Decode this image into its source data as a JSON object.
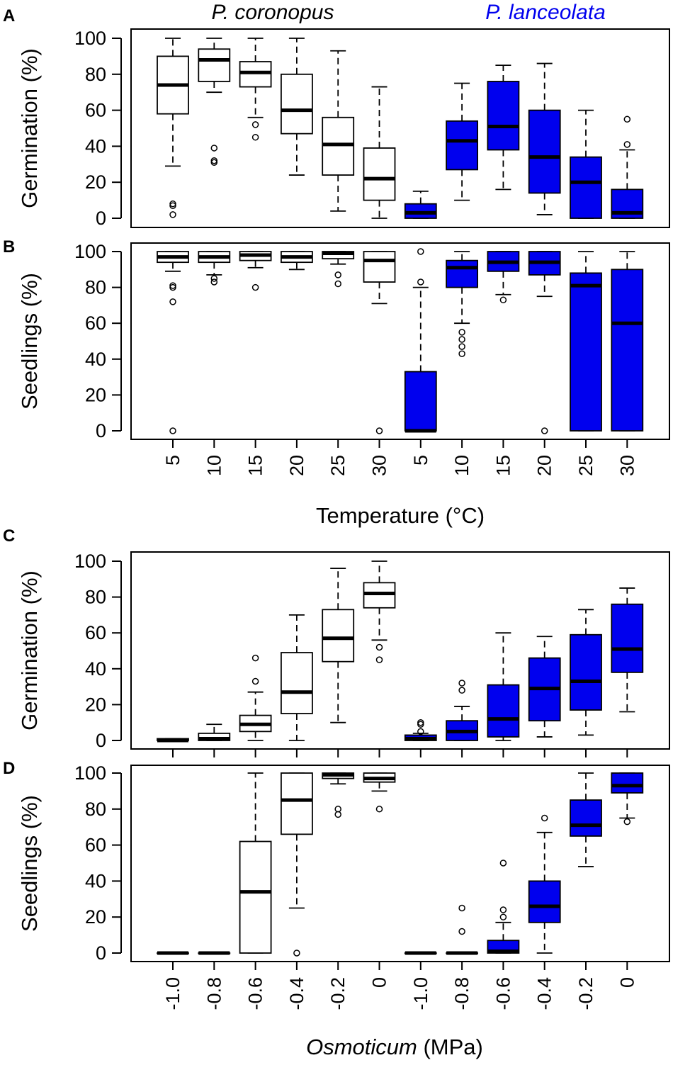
{
  "colors": {
    "coronopus_fill": "#ffffff",
    "lanceolata_fill": "#0000ee",
    "lanceolata_text": "#0000ee",
    "stroke": "#000000"
  },
  "legend": {
    "species_1": "P. coronopus",
    "species_2": "P. lanceolata"
  },
  "chart_data": [
    {
      "panel": "A",
      "type": "boxplot",
      "ylabel": "Germination (%)",
      "ylim": [
        0,
        100
      ],
      "yticks": [
        0,
        20,
        40,
        60,
        80,
        100
      ],
      "categories": [
        "5",
        "10",
        "15",
        "20",
        "25",
        "30",
        "5",
        "10",
        "15",
        "20",
        "25",
        "30"
      ],
      "groups": [
        "P. coronopus",
        "P. coronopus",
        "P. coronopus",
        "P. coronopus",
        "P. coronopus",
        "P. coronopus",
        "P. lanceolata",
        "P. lanceolata",
        "P. lanceolata",
        "P. lanceolata",
        "P. lanceolata",
        "P. lanceolata"
      ],
      "boxes": [
        {
          "min": 29,
          "q1": 58,
          "median": 74,
          "q3": 90,
          "max": 100,
          "outliers": [
            2,
            7,
            8
          ]
        },
        {
          "min": 70,
          "q1": 76,
          "median": 88,
          "q3": 94,
          "max": 100,
          "outliers": [
            31,
            32,
            39
          ]
        },
        {
          "min": 56,
          "q1": 73,
          "median": 81,
          "q3": 87,
          "max": 100,
          "outliers": [
            45,
            52
          ]
        },
        {
          "min": 24,
          "q1": 47,
          "median": 60,
          "q3": 80,
          "max": 100,
          "outliers": []
        },
        {
          "min": 4,
          "q1": 24,
          "median": 41,
          "q3": 56,
          "max": 93,
          "outliers": []
        },
        {
          "min": 0,
          "q1": 10,
          "median": 22,
          "q3": 39,
          "max": 73,
          "outliers": []
        },
        {
          "min": 0,
          "q1": 0,
          "median": 3,
          "q3": 8,
          "max": 15,
          "outliers": []
        },
        {
          "min": 10,
          "q1": 27,
          "median": 43,
          "q3": 54,
          "max": 75,
          "outliers": []
        },
        {
          "min": 16,
          "q1": 38,
          "median": 51,
          "q3": 76,
          "max": 85,
          "outliers": []
        },
        {
          "min": 2,
          "q1": 14,
          "median": 34,
          "q3": 60,
          "max": 86,
          "outliers": []
        },
        {
          "min": 0,
          "q1": 0,
          "median": 20,
          "q3": 34,
          "max": 60,
          "outliers": []
        },
        {
          "min": 0,
          "q1": 0,
          "median": 3,
          "q3": 16,
          "max": 38,
          "outliers": [
            41,
            55
          ]
        }
      ]
    },
    {
      "panel": "B",
      "type": "boxplot",
      "ylabel": "Seedlings (%)",
      "xlabel": "Temperature (°C)",
      "ylim": [
        0,
        100
      ],
      "yticks": [
        0,
        20,
        40,
        60,
        80,
        100
      ],
      "categories": [
        "5",
        "10",
        "15",
        "20",
        "25",
        "30",
        "5",
        "10",
        "15",
        "20",
        "25",
        "30"
      ],
      "groups": [
        "P. coronopus",
        "P. coronopus",
        "P. coronopus",
        "P. coronopus",
        "P. coronopus",
        "P. coronopus",
        "P. lanceolata",
        "P. lanceolata",
        "P. lanceolata",
        "P. lanceolata",
        "P. lanceolata",
        "P. lanceolata"
      ],
      "boxes": [
        {
          "min": 89,
          "q1": 94,
          "median": 97,
          "q3": 100,
          "max": 100,
          "outliers": [
            0,
            72,
            80,
            81
          ]
        },
        {
          "min": 87,
          "q1": 94,
          "median": 97,
          "q3": 100,
          "max": 100,
          "outliers": [
            83,
            85
          ]
        },
        {
          "min": 91,
          "q1": 95,
          "median": 98,
          "q3": 100,
          "max": 100,
          "outliers": [
            80
          ]
        },
        {
          "min": 90,
          "q1": 94,
          "median": 97,
          "q3": 100,
          "max": 100,
          "outliers": []
        },
        {
          "min": 93,
          "q1": 96,
          "median": 99,
          "q3": 100,
          "max": 100,
          "outliers": [
            82,
            87
          ]
        },
        {
          "min": 71,
          "q1": 83,
          "median": 95,
          "q3": 100,
          "max": 100,
          "outliers": [
            0
          ]
        },
        {
          "min": 0,
          "q1": 0,
          "median": 0,
          "q3": 33,
          "max": 80,
          "outliers": [
            83,
            100
          ]
        },
        {
          "min": 60,
          "q1": 80,
          "median": 91,
          "q3": 95,
          "max": 100,
          "outliers": [
            43,
            47,
            51,
            55
          ]
        },
        {
          "min": 76,
          "q1": 89,
          "median": 94,
          "q3": 100,
          "max": 100,
          "outliers": [
            73
          ]
        },
        {
          "min": 75,
          "q1": 87,
          "median": 94,
          "q3": 100,
          "max": 100,
          "outliers": [
            0
          ]
        },
        {
          "min": 0,
          "q1": 0,
          "median": 81,
          "q3": 88,
          "max": 100,
          "outliers": []
        },
        {
          "min": 0,
          "q1": 0,
          "median": 60,
          "q3": 90,
          "max": 100,
          "outliers": []
        }
      ]
    },
    {
      "panel": "C",
      "type": "boxplot",
      "ylabel": "Germination (%)",
      "ylim": [
        0,
        100
      ],
      "yticks": [
        0,
        20,
        40,
        60,
        80,
        100
      ],
      "categories": [
        "-1.0",
        "-0.8",
        "-0.6",
        "-0.4",
        "-0.2",
        "0",
        "-1.0",
        "-0.8",
        "-0.6",
        "-0.4",
        "-0.2",
        "0"
      ],
      "groups": [
        "P. coronopus",
        "P. coronopus",
        "P. coronopus",
        "P. coronopus",
        "P. coronopus",
        "P. coronopus",
        "P. lanceolata",
        "P. lanceolata",
        "P. lanceolata",
        "P. lanceolata",
        "P. lanceolata",
        "P. lanceolata"
      ],
      "boxes": [
        {
          "min": 0,
          "q1": 0,
          "median": 0,
          "q3": 1,
          "max": 1,
          "outliers": []
        },
        {
          "min": 0,
          "q1": 0,
          "median": 1,
          "q3": 4,
          "max": 9,
          "outliers": []
        },
        {
          "min": 0,
          "q1": 5,
          "median": 9,
          "q3": 14,
          "max": 27,
          "outliers": [
            33,
            46
          ]
        },
        {
          "min": 0,
          "q1": 15,
          "median": 27,
          "q3": 49,
          "max": 70,
          "outliers": []
        },
        {
          "min": 10,
          "q1": 44,
          "median": 57,
          "q3": 73,
          "max": 96,
          "outliers": []
        },
        {
          "min": 56,
          "q1": 74,
          "median": 82,
          "q3": 88,
          "max": 100,
          "outliers": [
            45,
            52
          ]
        },
        {
          "min": 0,
          "q1": 0,
          "median": 1,
          "q3": 3,
          "max": 4,
          "outliers": [
            5,
            9,
            10
          ]
        },
        {
          "min": 0,
          "q1": 0,
          "median": 5,
          "q3": 11,
          "max": 19,
          "outliers": [
            28,
            32
          ]
        },
        {
          "min": 0,
          "q1": 2,
          "median": 12,
          "q3": 31,
          "max": 60,
          "outliers": []
        },
        {
          "min": 2,
          "q1": 11,
          "median": 29,
          "q3": 46,
          "max": 58,
          "outliers": []
        },
        {
          "min": 3,
          "q1": 17,
          "median": 33,
          "q3": 59,
          "max": 73,
          "outliers": []
        },
        {
          "min": 16,
          "q1": 38,
          "median": 51,
          "q3": 76,
          "max": 85,
          "outliers": []
        }
      ]
    },
    {
      "panel": "D",
      "type": "boxplot",
      "ylabel": "Seedlings (%)",
      "xlabel_italic": "Osmoticum",
      "xlabel_rest": " (MPa)",
      "ylim": [
        0,
        100
      ],
      "yticks": [
        0,
        20,
        40,
        60,
        80,
        100
      ],
      "categories": [
        "-1.0",
        "-0.8",
        "-0.6",
        "-0.4",
        "-0.2",
        "0",
        "-1.0",
        "-0.8",
        "-0.6",
        "-0.4",
        "-0.2",
        "0"
      ],
      "groups": [
        "P. coronopus",
        "P. coronopus",
        "P. coronopus",
        "P. coronopus",
        "P. coronopus",
        "P. coronopus",
        "P. lanceolata",
        "P. lanceolata",
        "P. lanceolata",
        "P. lanceolata",
        "P. lanceolata",
        "P. lanceolata"
      ],
      "boxes": [
        {
          "min": 0,
          "q1": 0,
          "median": 0,
          "q3": 0,
          "max": 0,
          "outliers": []
        },
        {
          "min": 0,
          "q1": 0,
          "median": 0,
          "q3": 0,
          "max": 0,
          "outliers": []
        },
        {
          "min": 0,
          "q1": 0,
          "median": 34,
          "q3": 62,
          "max": 100,
          "outliers": []
        },
        {
          "min": 25,
          "q1": 66,
          "median": 85,
          "q3": 100,
          "max": 100,
          "outliers": [
            0
          ]
        },
        {
          "min": 94,
          "q1": 97,
          "median": 99,
          "q3": 100,
          "max": 100,
          "outliers": [
            77,
            80
          ]
        },
        {
          "min": 90,
          "q1": 95,
          "median": 97,
          "q3": 100,
          "max": 100,
          "outliers": [
            80
          ]
        },
        {
          "min": 0,
          "q1": 0,
          "median": 0,
          "q3": 0,
          "max": 0,
          "outliers": []
        },
        {
          "min": 0,
          "q1": 0,
          "median": 0,
          "q3": 0,
          "max": 0,
          "outliers": [
            12,
            25
          ]
        },
        {
          "min": 0,
          "q1": 0,
          "median": 1,
          "q3": 7,
          "max": 17,
          "outliers": [
            20,
            24,
            50
          ]
        },
        {
          "min": 0,
          "q1": 17,
          "median": 26,
          "q3": 40,
          "max": 67,
          "outliers": [
            75
          ]
        },
        {
          "min": 48,
          "q1": 65,
          "median": 71,
          "q3": 85,
          "max": 100,
          "outliers": []
        },
        {
          "min": 75,
          "q1": 89,
          "median": 93,
          "q3": 100,
          "max": 100,
          "outliers": [
            73
          ]
        }
      ]
    }
  ]
}
